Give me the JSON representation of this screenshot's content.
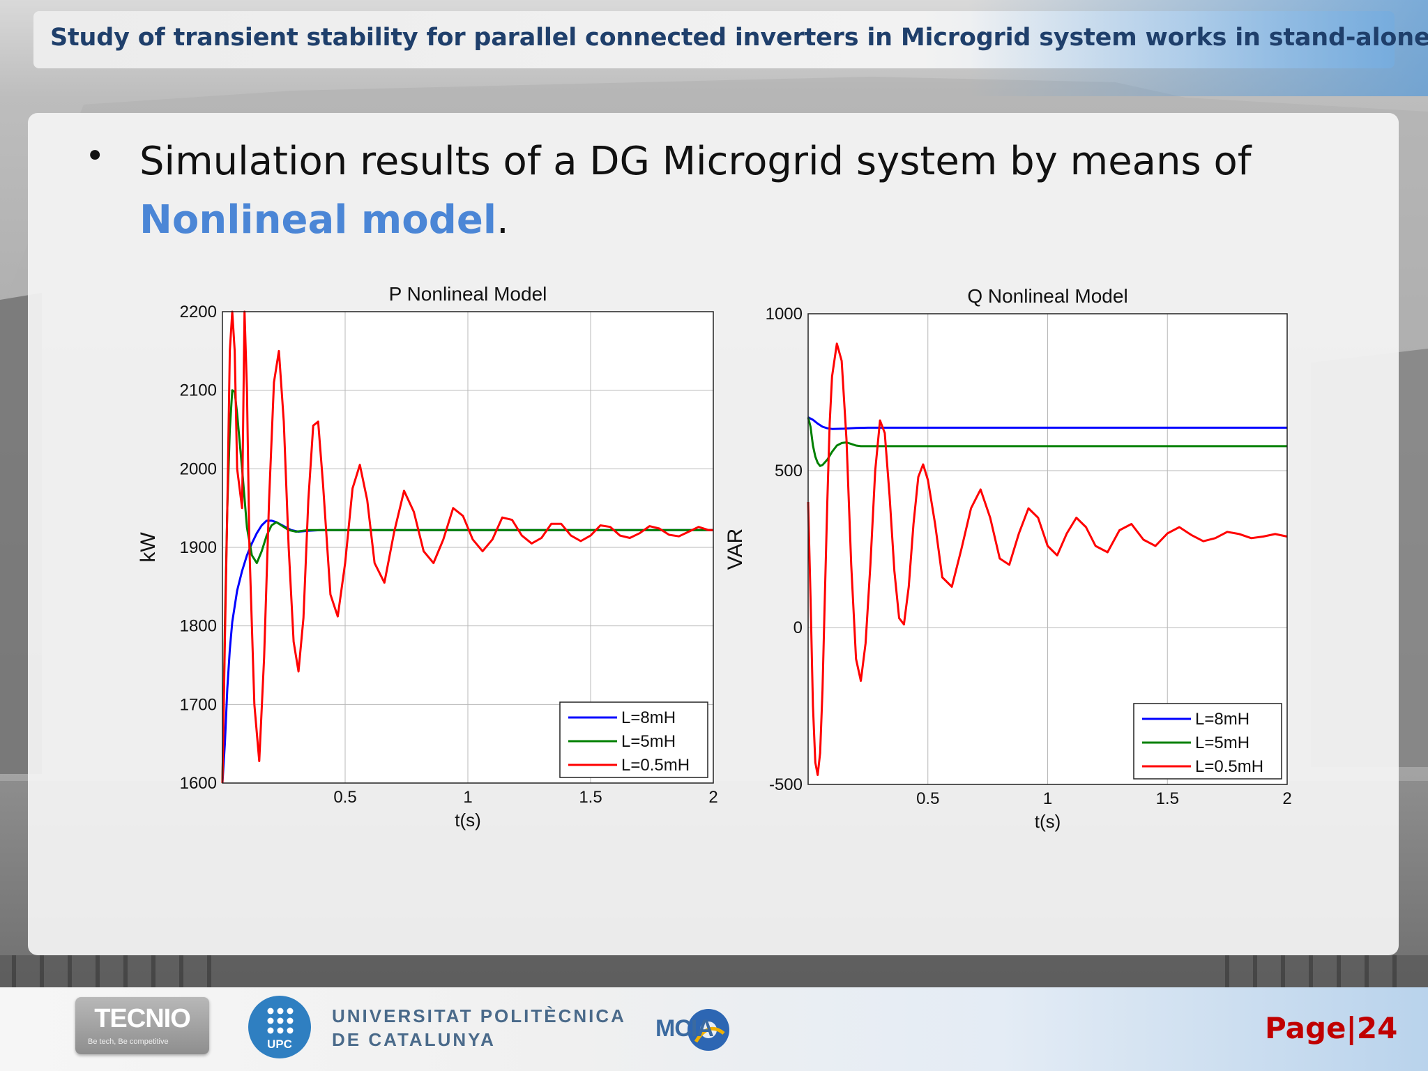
{
  "header": {
    "title": "Study of transient stability for parallel connected inverters in Microgrid system works in stand-alone"
  },
  "bullet": {
    "text_before": "Simulation results of a DG Microgrid system by means of",
    "highlight": "Nonlineal model",
    "text_after": "."
  },
  "footer": {
    "tecnio_logo": "TECNIO",
    "tecnio_tagline": "Be tech, Be competitive",
    "upc_logo": "UPC",
    "university_line1": "UNIVERSITAT POLITÈCNICA",
    "university_line2": "DE CATALUNYA",
    "mcia_logo": "MCIA",
    "page_label": "Page",
    "page_separator": "|",
    "page_number": "24"
  },
  "colors": {
    "title_text": "#1f3f6b",
    "highlight": "#4b86d6",
    "page_number": "#c00000",
    "series_8mH": "#0000ff",
    "series_5mH": "#008000",
    "series_05mH": "#ff0000"
  },
  "chart_data": [
    {
      "type": "line",
      "title": "P Nonlineal Model",
      "xlabel": "t(s)",
      "ylabel": "kW",
      "xlim": [
        0,
        2
      ],
      "ylim": [
        1600,
        2200
      ],
      "xticks": [
        0.5,
        1,
        1.5,
        2
      ],
      "yticks": [
        1600,
        1700,
        1800,
        1900,
        2000,
        2100,
        2200
      ],
      "grid": true,
      "legend_position": "bottom-right",
      "series": [
        {
          "name": "L=8mH",
          "color": "#0000ff",
          "x": [
            0,
            0.01,
            0.02,
            0.03,
            0.04,
            0.06,
            0.08,
            0.1,
            0.12,
            0.14,
            0.16,
            0.18,
            0.2,
            0.22,
            0.25,
            0.28,
            0.31,
            0.35,
            0.4,
            0.5,
            2.0
          ],
          "y": [
            1600,
            1650,
            1720,
            1770,
            1805,
            1845,
            1870,
            1890,
            1905,
            1918,
            1928,
            1934,
            1934,
            1932,
            1927,
            1922,
            1920,
            1921,
            1922,
            1922,
            1922
          ]
        },
        {
          "name": "L=5mH",
          "color": "#008000",
          "x": [
            0,
            0.005,
            0.01,
            0.02,
            0.03,
            0.04,
            0.05,
            0.06,
            0.08,
            0.1,
            0.12,
            0.14,
            0.16,
            0.18,
            0.2,
            0.22,
            0.24,
            0.27,
            0.3,
            0.35,
            0.4,
            2.0
          ],
          "y": [
            1600,
            1700,
            1800,
            1950,
            2050,
            2100,
            2098,
            2070,
            2000,
            1925,
            1890,
            1880,
            1895,
            1915,
            1928,
            1932,
            1928,
            1922,
            1920,
            1922,
            1922,
            1922
          ]
        },
        {
          "name": "L=0.5mH",
          "color": "#ff0000",
          "x": [
            0,
            0.01,
            0.02,
            0.03,
            0.04,
            0.05,
            0.06,
            0.08,
            0.09,
            0.1,
            0.11,
            0.13,
            0.15,
            0.17,
            0.19,
            0.21,
            0.23,
            0.25,
            0.27,
            0.29,
            0.31,
            0.33,
            0.35,
            0.37,
            0.39,
            0.41,
            0.44,
            0.47,
            0.5,
            0.53,
            0.56,
            0.59,
            0.62,
            0.66,
            0.7,
            0.74,
            0.78,
            0.82,
            0.86,
            0.9,
            0.94,
            0.98,
            1.02,
            1.06,
            1.1,
            1.14,
            1.18,
            1.22,
            1.26,
            1.3,
            1.34,
            1.38,
            1.42,
            1.46,
            1.5,
            1.54,
            1.58,
            1.62,
            1.66,
            1.7,
            1.74,
            1.78,
            1.82,
            1.86,
            1.9,
            1.94,
            1.98,
            2.0
          ],
          "y": [
            1600,
            1780,
            1950,
            2150,
            2220,
            2150,
            2000,
            1950,
            2200,
            2100,
            1900,
            1700,
            1628,
            1760,
            1960,
            2110,
            2150,
            2060,
            1900,
            1780,
            1742,
            1810,
            1960,
            2055,
            2060,
            1980,
            1840,
            1812,
            1880,
            1975,
            2005,
            1960,
            1880,
            1855,
            1920,
            1972,
            1945,
            1895,
            1880,
            1910,
            1950,
            1940,
            1910,
            1895,
            1910,
            1938,
            1935,
            1915,
            1905,
            1912,
            1930,
            1930,
            1915,
            1908,
            1915,
            1928,
            1926,
            1915,
            1912,
            1918,
            1927,
            1924,
            1916,
            1914,
            1920,
            1926,
            1922,
            1922
          ]
        }
      ]
    },
    {
      "type": "line",
      "title": "Q Nonlineal Model",
      "xlabel": "t(s)",
      "ylabel": "VAR",
      "xlim": [
        0,
        2
      ],
      "ylim": [
        -500,
        1000
      ],
      "xticks": [
        0.5,
        1,
        1.5,
        2
      ],
      "yticks": [
        -500,
        0,
        500,
        1000
      ],
      "grid": true,
      "legend_position": "bottom-right",
      "series": [
        {
          "name": "L=8mH",
          "color": "#0000ff",
          "x": [
            0,
            0.02,
            0.04,
            0.06,
            0.08,
            0.1,
            0.15,
            0.2,
            0.25,
            2.0
          ],
          "y": [
            670,
            662,
            650,
            640,
            635,
            633,
            634,
            636,
            637,
            637
          ]
        },
        {
          "name": "L=5mH",
          "color": "#008000",
          "x": [
            0,
            0.01,
            0.02,
            0.03,
            0.04,
            0.05,
            0.06,
            0.08,
            0.1,
            0.12,
            0.14,
            0.16,
            0.18,
            0.2,
            0.22,
            0.25,
            0.3,
            2.0
          ],
          "y": [
            670,
            640,
            580,
            545,
            525,
            515,
            518,
            535,
            560,
            580,
            588,
            590,
            585,
            580,
            578,
            578,
            578,
            578
          ]
        },
        {
          "name": "L=0.5mH",
          "color": "#ff0000",
          "x": [
            0,
            0.01,
            0.02,
            0.03,
            0.04,
            0.05,
            0.06,
            0.07,
            0.08,
            0.09,
            0.1,
            0.12,
            0.14,
            0.16,
            0.18,
            0.2,
            0.22,
            0.24,
            0.26,
            0.28,
            0.3,
            0.32,
            0.34,
            0.36,
            0.38,
            0.4,
            0.42,
            0.44,
            0.46,
            0.48,
            0.5,
            0.53,
            0.56,
            0.6,
            0.64,
            0.68,
            0.72,
            0.76,
            0.8,
            0.84,
            0.88,
            0.92,
            0.96,
            1.0,
            1.04,
            1.08,
            1.12,
            1.16,
            1.2,
            1.25,
            1.3,
            1.35,
            1.4,
            1.45,
            1.5,
            1.55,
            1.6,
            1.65,
            1.7,
            1.75,
            1.8,
            1.85,
            1.9,
            1.95,
            2.0
          ],
          "y": [
            400,
            100,
            -250,
            -430,
            -470,
            -400,
            -200,
            100,
            400,
            650,
            800,
            905,
            850,
            600,
            200,
            -100,
            -170,
            -50,
            200,
            500,
            660,
            620,
            420,
            180,
            30,
            10,
            130,
            330,
            480,
            520,
            470,
            330,
            160,
            130,
            250,
            380,
            440,
            350,
            220,
            200,
            300,
            380,
            350,
            260,
            230,
            300,
            350,
            320,
            260,
            240,
            310,
            330,
            280,
            260,
            300,
            320,
            295,
            275,
            285,
            305,
            298,
            285,
            290,
            298,
            290
          ]
        }
      ]
    }
  ]
}
